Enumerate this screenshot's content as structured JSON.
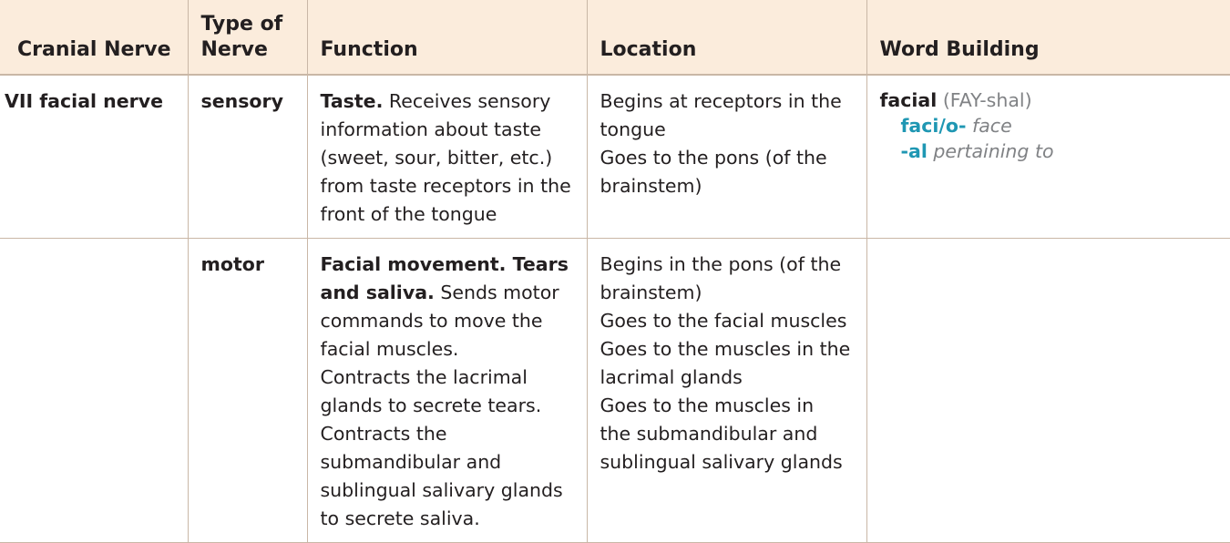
{
  "headers": {
    "cranial_nerve": "Cranial Nerve",
    "type_line1": "Type of",
    "type_line2": "Nerve",
    "function": "Function",
    "location": "Location",
    "word_building": "Word Building"
  },
  "rows": [
    {
      "cranial_nerve": "VII facial nerve",
      "type": "sensory",
      "function_title": "Taste.",
      "function_lines": [
        " Receives sensory",
        "information about taste",
        "(sweet, sour, bitter, etc.)",
        "from taste receptors in the",
        "front of the tongue"
      ],
      "location_lines": [
        "Begins at receptors in the",
        "tongue",
        "Goes to the pons (of the",
        "brainstem)"
      ],
      "word_building": {
        "term": "facial",
        "pronunciation": " (FAY-shal)",
        "parts": [
          {
            "root": "faci/o-",
            "meaning": " face"
          },
          {
            "root": "-al",
            "meaning": " pertaining to"
          }
        ]
      }
    },
    {
      "cranial_nerve": "",
      "type": "motor",
      "function_title_line1": "Facial movement. Tears",
      "function_title_line2": "and saliva.",
      "function_lines": [
        " Sends motor",
        "commands to move the",
        "facial muscles.",
        "Contracts the lacrimal",
        "glands to secrete tears.",
        "Contracts the",
        "submandibular and",
        "sublingual salivary glands",
        "to secrete saliva."
      ],
      "location_lines": [
        "Begins in the pons (of the",
        "brainstem)",
        "Goes to the facial muscles",
        "Goes to the muscles in the",
        "lacrimal glands",
        "Goes to the muscles in",
        "the submandibular and",
        "sublingual salivary glands"
      ]
    }
  ]
}
